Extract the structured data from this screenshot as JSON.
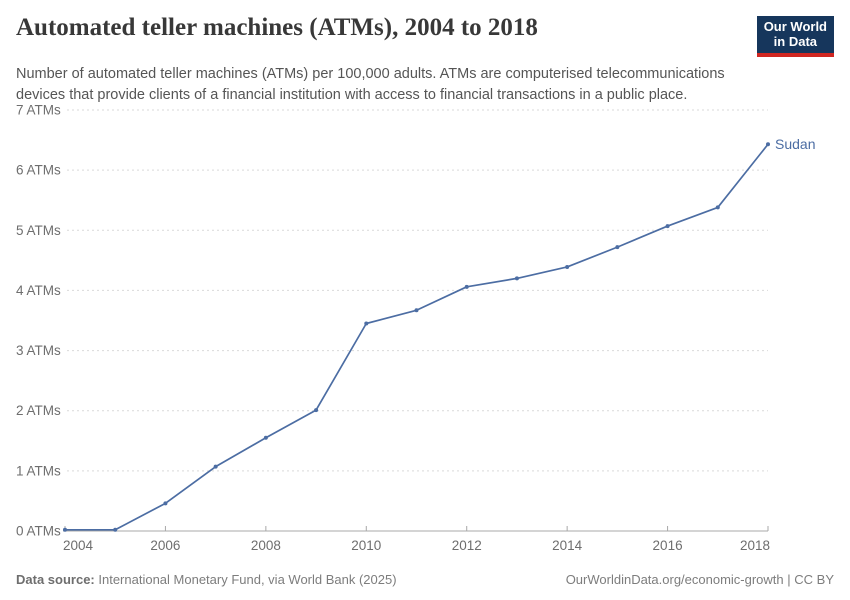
{
  "header": {
    "title": "Automated teller machines (ATMs), 2004 to 2018",
    "subtitle": "Number of automated teller machines (ATMs) per 100,000 adults. ATMs are computerised telecommunications devices that provide clients of a financial institution with access to financial transactions in a public place.",
    "logo": {
      "line1": "Our World",
      "line2": "in Data",
      "bg_color": "#16365c",
      "accent_color": "#d02621"
    }
  },
  "chart_data": {
    "type": "line",
    "title": "Automated teller machines (ATMs), 2004 to 2018",
    "xlabel": "",
    "ylabel": "ATMs per 100,000 adults",
    "x": [
      2004,
      2005,
      2006,
      2007,
      2008,
      2009,
      2010,
      2011,
      2012,
      2013,
      2014,
      2015,
      2016,
      2017,
      2018
    ],
    "series": [
      {
        "name": "Sudan",
        "color": "#4c6da3",
        "values": [
          0.02,
          0.02,
          0.46,
          1.07,
          1.55,
          2.01,
          3.45,
          3.67,
          4.06,
          4.2,
          4.39,
          4.72,
          5.07,
          5.38,
          6.43
        ]
      }
    ],
    "xlim": [
      2004,
      2018
    ],
    "ylim": [
      0,
      7
    ],
    "xticks": [
      2004,
      2006,
      2008,
      2010,
      2012,
      2014,
      2016,
      2018
    ],
    "yticks": [
      0,
      1,
      2,
      3,
      4,
      5,
      6,
      7
    ],
    "ytick_suffix": " ATMs",
    "grid": "horizontal-dashed",
    "legend": "end-of-line-label",
    "colors": {
      "grid": "#d9d9d9",
      "axis": "#a8a8a8",
      "tick_label": "#6e6e6e"
    }
  },
  "footer": {
    "source_label": "Data source:",
    "source_text": " International Monetary Fund, via World Bank (2025)",
    "link_text": "OurWorldinData.org/economic-growth",
    "separator": " | ",
    "license_text": "CC BY"
  }
}
